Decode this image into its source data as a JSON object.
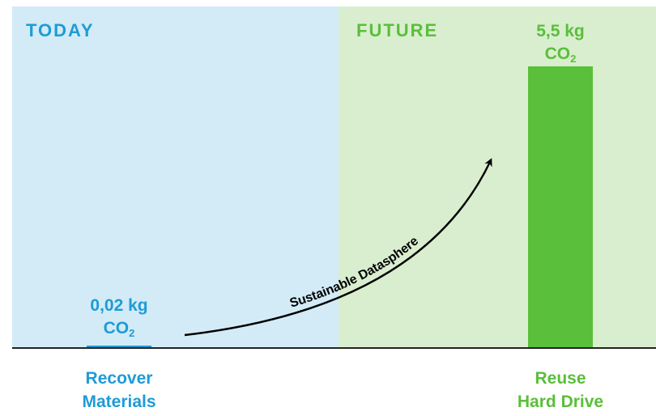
{
  "chart_data": {
    "type": "bar",
    "title": "",
    "xlabel": "",
    "ylabel": "",
    "ylim": [
      0,
      5.5
    ],
    "grid": false,
    "panels": [
      {
        "label": "TODAY",
        "color": "#d2ebf7",
        "label_color": "#1e9bd7"
      },
      {
        "label": "FUTURE",
        "color": "#d9eecf",
        "label_color": "#5abf3a"
      }
    ],
    "categories": [
      {
        "name_lines": [
          "Recover",
          "Materials"
        ],
        "value": 0.02,
        "value_text": "0,02 kg",
        "unit": "CO₂",
        "color": "#1e9bd7"
      },
      {
        "name_lines": [
          "Reuse",
          "Hard Drive"
        ],
        "value": 5.5,
        "value_text": "5,5 kg",
        "unit": "CO₂",
        "color": "#5abf3a"
      }
    ],
    "annotation": {
      "text": "Sustainable Datasphere",
      "color": "#000000"
    }
  }
}
